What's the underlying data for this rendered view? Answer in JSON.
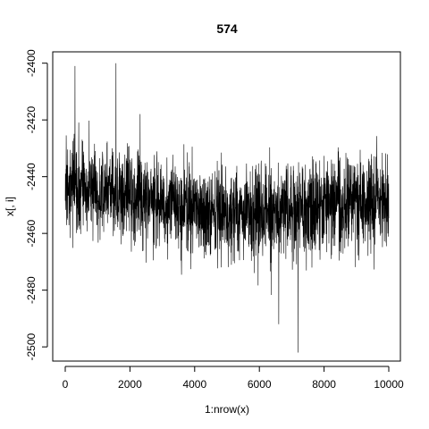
{
  "chart_data": {
    "type": "line",
    "title": "574",
    "xlabel": "1:nrow(x)",
    "ylabel": "x[, i]",
    "xlim": [
      0,
      10000
    ],
    "ylim": [
      -2500,
      -2400
    ],
    "grid": false,
    "x_ticks": [
      0,
      2000,
      4000,
      6000,
      8000,
      10000
    ],
    "x_tick_labels": [
      "0",
      "2000",
      "4000",
      "6000",
      "8000",
      "10000"
    ],
    "y_ticks": [
      -2500,
      -2480,
      -2460,
      -2440,
      -2420,
      -2400
    ],
    "y_tick_labels": [
      "-2500",
      "-2480",
      "-2460",
      "-2440",
      "-2420",
      "-2400"
    ],
    "series": [
      {
        "n_points": 10000,
        "trend_x": [
          0,
          2000,
          4000,
          6000,
          8000,
          10000
        ],
        "trend_mean": [
          -2443,
          -2446,
          -2452,
          -2453,
          -2450,
          -2448
        ],
        "spread_sd": 8,
        "observed_max": -2400,
        "observed_min": -2502,
        "color": "#000000"
      }
    ]
  }
}
